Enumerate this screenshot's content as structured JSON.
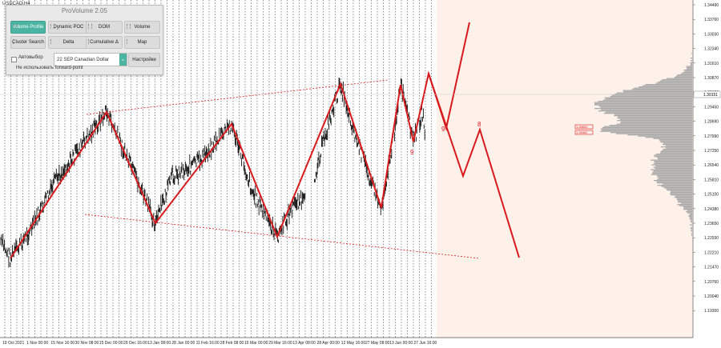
{
  "symbol_label": "USDCAD,H4",
  "colors": {
    "background_right": "#fdf1ea",
    "candles": "#111111",
    "zigzag": "#d9191c",
    "channel": "#d9191c",
    "profile": "#a9a9a9",
    "panel_accent": "#4bb4a3",
    "grid": "#222222"
  },
  "panel": {
    "title": "ProVolume 2.05",
    "buttons": [
      {
        "label": "Volume Profile",
        "active": true
      },
      {
        "label": "Dynamic POC",
        "active": false
      },
      {
        "label": "DOM",
        "active": false
      },
      {
        "label": "Volume",
        "active": false
      },
      {
        "label": "Cluster Search",
        "active": false
      },
      {
        "label": "Delta",
        "active": false
      },
      {
        "label": "Cumulative Δ",
        "active": false
      },
      {
        "label": "Map",
        "active": false
      }
    ],
    "autoselect_label": "Автовыбор",
    "contract_value": "22 SEP Canadian Dollar",
    "settings_label": "Настройки",
    "forward_point_label": "Не использовать forward-point"
  },
  "price_axis": {
    "labels": [
      "1.34490",
      "1.33760",
      "1.33030",
      "1.32340",
      "1.31610",
      "1.30870",
      "1.30150",
      "1.29450",
      "1.28690",
      "1.27990",
      "1.27250",
      "1.26540",
      "1.25810",
      "1.25100",
      "1.24380",
      "1.23650",
      "1.22930",
      "1.22210",
      "1.21470",
      "1.20760",
      "1.20040",
      "1.19300"
    ],
    "current_price": "1.30151"
  },
  "time_axis": {
    "labels": [
      "19 Oct 2021",
      "1 Nov 00:00",
      "15 Nov 16:00",
      "30 Nov 08:00",
      "15 Dec 00:00",
      "29 Dec 16:00",
      "13 Jan 08:00",
      "28 Jan 00:00",
      "11 Feb 16:00",
      "28 Feb 08:00",
      "15 Mar 00:00",
      "29 Mar 16:00",
      "13 Apr 08:00",
      "28 Apr 00:00",
      "12 May 16:00",
      "27 May 08:00",
      "13 Jun 00:00",
      "27 Jun 16:00"
    ]
  },
  "annotations": {
    "wave_labels": [
      "9",
      "9",
      "8"
    ],
    "profile_tags": [
      "1.28650",
      "1.28462"
    ]
  }
}
